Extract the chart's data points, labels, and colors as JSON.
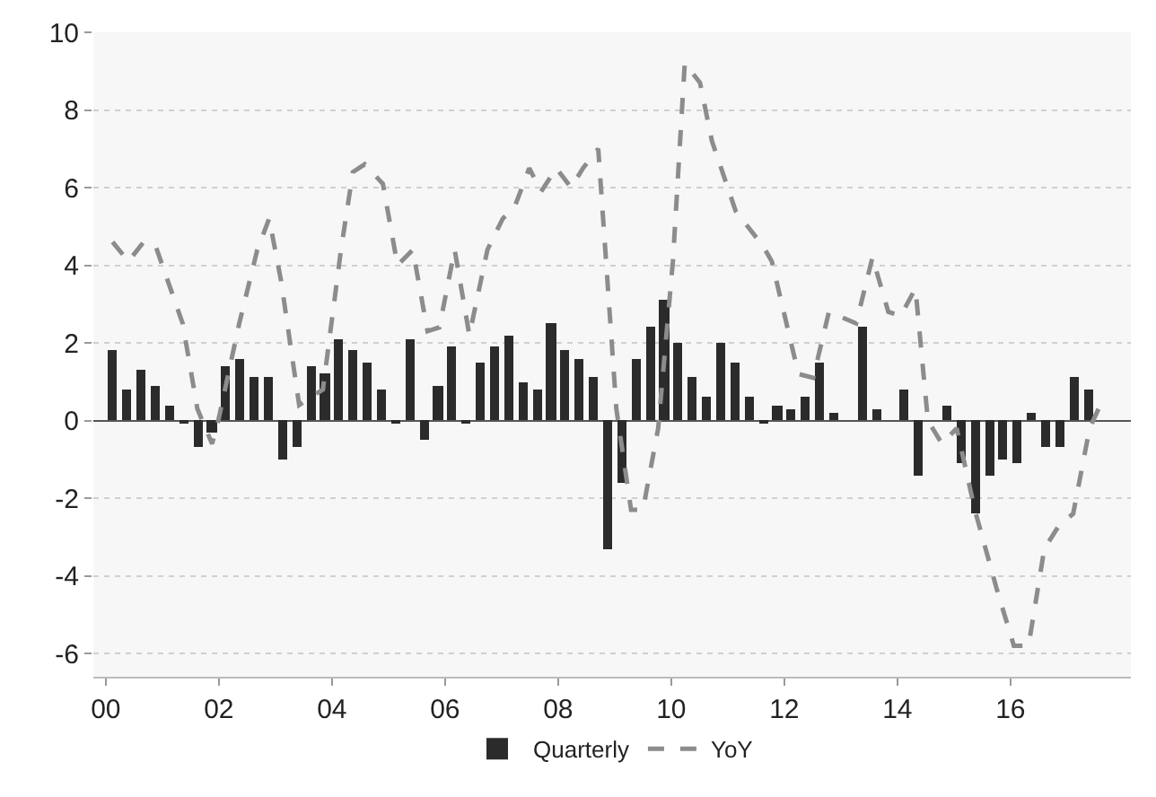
{
  "chart_data": {
    "type": "bar",
    "xlim": [
      1999.78,
      2018.13
    ],
    "xticks": [
      {
        "value": 2000,
        "label": "00"
      },
      {
        "value": 2002,
        "label": "02"
      },
      {
        "value": 2004,
        "label": "04"
      },
      {
        "value": 2006,
        "label": "06"
      },
      {
        "value": 2008,
        "label": "08"
      },
      {
        "value": 2010,
        "label": "10"
      },
      {
        "value": 2012,
        "label": "12"
      },
      {
        "value": 2014,
        "label": "14"
      },
      {
        "value": 2016,
        "label": "16"
      }
    ],
    "ylim": [
      -6.6,
      10
    ],
    "yticks": [
      -6,
      -4,
      -2,
      0,
      2,
      4,
      6,
      8,
      10
    ],
    "grid": "y",
    "legend": "bottom",
    "series": [
      {
        "name": "Quarterly",
        "color": "#2b2b2b",
        "x": [
          2000.125,
          2000.375,
          2000.625,
          2000.875,
          2001.125,
          2001.375,
          2001.625,
          2001.875,
          2002.125,
          2002.375,
          2002.625,
          2002.875,
          2003.125,
          2003.375,
          2003.625,
          2003.875,
          2004.125,
          2004.375,
          2004.625,
          2004.875,
          2005.125,
          2005.375,
          2005.625,
          2005.875,
          2006.125,
          2006.375,
          2006.625,
          2006.875,
          2007.125,
          2007.375,
          2007.625,
          2007.875,
          2008.125,
          2008.375,
          2008.625,
          2008.875,
          2009.125,
          2009.375,
          2009.625,
          2009.875,
          2010.125,
          2010.375,
          2010.625,
          2010.875,
          2011.125,
          2011.375,
          2011.625,
          2011.875,
          2012.125,
          2012.375,
          2012.625,
          2012.875,
          2013.125,
          2013.375,
          2013.625,
          2013.875,
          2014.125,
          2014.375,
          2014.625,
          2014.875,
          2015.125,
          2015.375,
          2015.625,
          2015.875,
          2016.125,
          2016.375,
          2016.625,
          2016.875,
          2017.125,
          2017.375
        ],
        "values": [
          1.8,
          0.8,
          1.3,
          0.9,
          0.4,
          -0.1,
          -0.7,
          -0.3,
          1.4,
          1.6,
          1.1,
          1.1,
          -1.0,
          -0.7,
          1.4,
          1.2,
          2.1,
          1.8,
          1.5,
          0.8,
          -0.1,
          2.1,
          -0.5,
          0.9,
          1.9,
          -0.1,
          1.5,
          1.9,
          2.2,
          1.0,
          0.8,
          2.5,
          1.8,
          1.6,
          1.1,
          -3.3,
          -1.6,
          1.6,
          2.4,
          3.1,
          2.0,
          1.1,
          0.6,
          2.0,
          1.5,
          0.6,
          -0.1,
          0.4,
          0.3,
          0.6,
          1.5,
          0.2,
          0.0,
          2.4,
          0.3,
          0.0,
          0.8,
          -1.4,
          0.0,
          0.4,
          -1.1,
          -2.4,
          -1.4,
          -1.0,
          -1.1,
          0.2,
          -0.7,
          -0.7,
          1.1,
          0.8
        ]
      },
      {
        "name": "YoY",
        "type": "line",
        "color": "#8c8c8c",
        "line_style": "dashed",
        "x": [
          2000.12,
          2000.4,
          2000.67,
          2000.88,
          2001.36,
          2001.62,
          2001.88,
          2001.99,
          2002.36,
          2002.68,
          2002.89,
          2003.1,
          2003.42,
          2003.84,
          2004.16,
          2004.37,
          2004.58,
          2004.9,
          2005.16,
          2005.43,
          2005.69,
          2005.9,
          2006.17,
          2006.43,
          2006.75,
          2007.02,
          2007.23,
          2007.49,
          2007.7,
          2007.97,
          2008.23,
          2008.44,
          2008.71,
          2009.03,
          2009.29,
          2009.5,
          2009.77,
          2010.03,
          2010.24,
          2010.51,
          2010.72,
          2011.14,
          2011.62,
          2011.78,
          2012.25,
          2012.51,
          2012.79,
          2013.27,
          2013.56,
          2013.84,
          2014.06,
          2014.32,
          2014.54,
          2014.79,
          2015.05,
          2015.37,
          2015.75,
          2016.06,
          2016.32,
          2016.6,
          2016.86,
          2017.11,
          2017.4,
          2017.59
        ],
        "values": [
          4.6,
          4.1,
          4.6,
          4.5,
          2.5,
          0.3,
          -0.6,
          0.0,
          2.5,
          4.4,
          5.2,
          3.6,
          0.4,
          0.8,
          4.4,
          6.4,
          6.6,
          6.1,
          4.0,
          4.4,
          2.3,
          2.4,
          4.4,
          2.2,
          4.4,
          5.2,
          5.5,
          6.5,
          5.9,
          6.5,
          6.0,
          6.5,
          7.0,
          0.3,
          -2.3,
          -2.3,
          -0.2,
          4.1,
          9.2,
          8.7,
          7.2,
          5.4,
          4.5,
          4.1,
          1.2,
          1.1,
          2.8,
          2.5,
          4.2,
          2.8,
          2.7,
          3.4,
          0.0,
          -0.6,
          -0.2,
          -2.3,
          -4.3,
          -5.8,
          -5.8,
          -3.3,
          -2.7,
          -2.4,
          -0.2,
          0.4
        ]
      }
    ]
  }
}
